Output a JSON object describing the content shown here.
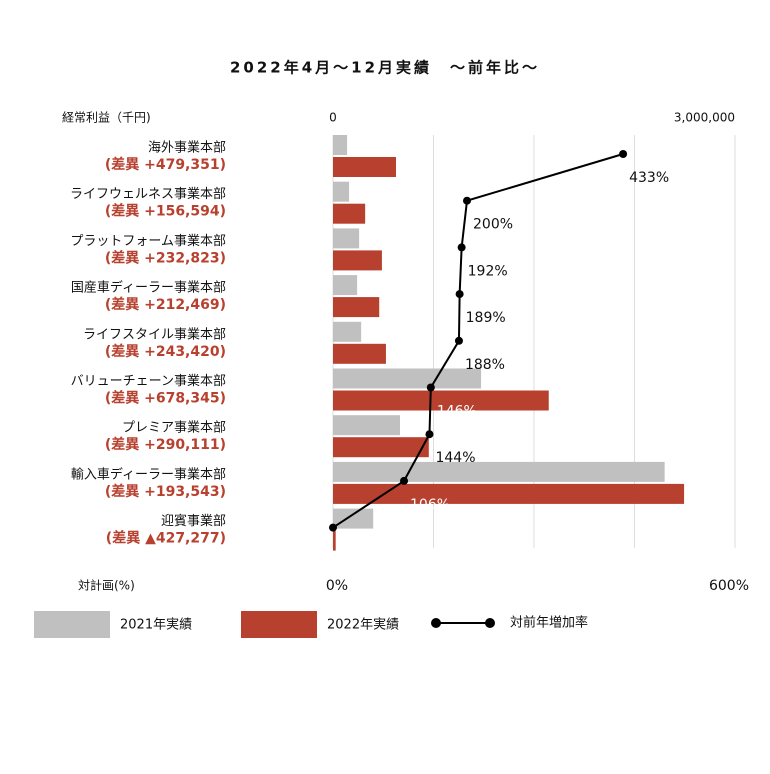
{
  "chart_data": {
    "type": "bar_line",
    "title": "2022年4月〜12月実績　〜前年比〜",
    "x_axis_title": "経常利益（千円)",
    "x2_axis_title": "対計画(%)",
    "categories": [
      "海外事業本部",
      "ライフウェルネス事業本部",
      "プラットフォーム事業本部",
      "国産車ディーラー事業本部",
      "ライフスタイル事業本部",
      "バリューチェーン事業本部",
      "プレミア事業本部",
      "輸入車ディーラー事業本部",
      "迎賓事業部"
    ],
    "category_notes": [
      "(差異 +479,351)",
      "(差異 +156,594)",
      "(差異 +232,823)",
      "(差異 +212,469)",
      "(差異 +243,420)",
      "(差異 +678,345)",
      "(差異 +290,111)",
      "(差異 +193,543)",
      "(差異 ▲427,277)"
    ],
    "xlim": [
      0,
      3000000
    ],
    "xticks": [
      0,
      {
        "value": 3000000,
        "label": "3,000,000"
      }
    ],
    "grid_x": [
      0,
      750000,
      1500000,
      2250000,
      3000000
    ],
    "x2lim": [
      0,
      600
    ],
    "x2ticks": [
      {
        "value": 0,
        "label": "0%"
      },
      {
        "value": 600,
        "label": "600%"
      }
    ],
    "series": [
      {
        "name": "2021年実績",
        "color": "#c0c0c0",
        "values": [
          105000,
          120000,
          195000,
          180000,
          210000,
          1105000,
          500000,
          2475000,
          300000
        ]
      },
      {
        "name": "2022年実績",
        "color": "#b8402e",
        "values": [
          470000,
          240000,
          365000,
          345000,
          395000,
          1610000,
          715000,
          2620000,
          20000
        ]
      },
      {
        "name": "対前年増加率",
        "color": "#000000",
        "axis": "x2",
        "values": [
          433,
          200,
          192,
          189,
          188,
          146,
          144,
          106,
          0
        ],
        "value_labels": [
          "433%",
          "200%",
          "192%",
          "189%",
          "188%",
          "146%",
          "144%",
          "106%",
          null
        ]
      }
    ]
  }
}
